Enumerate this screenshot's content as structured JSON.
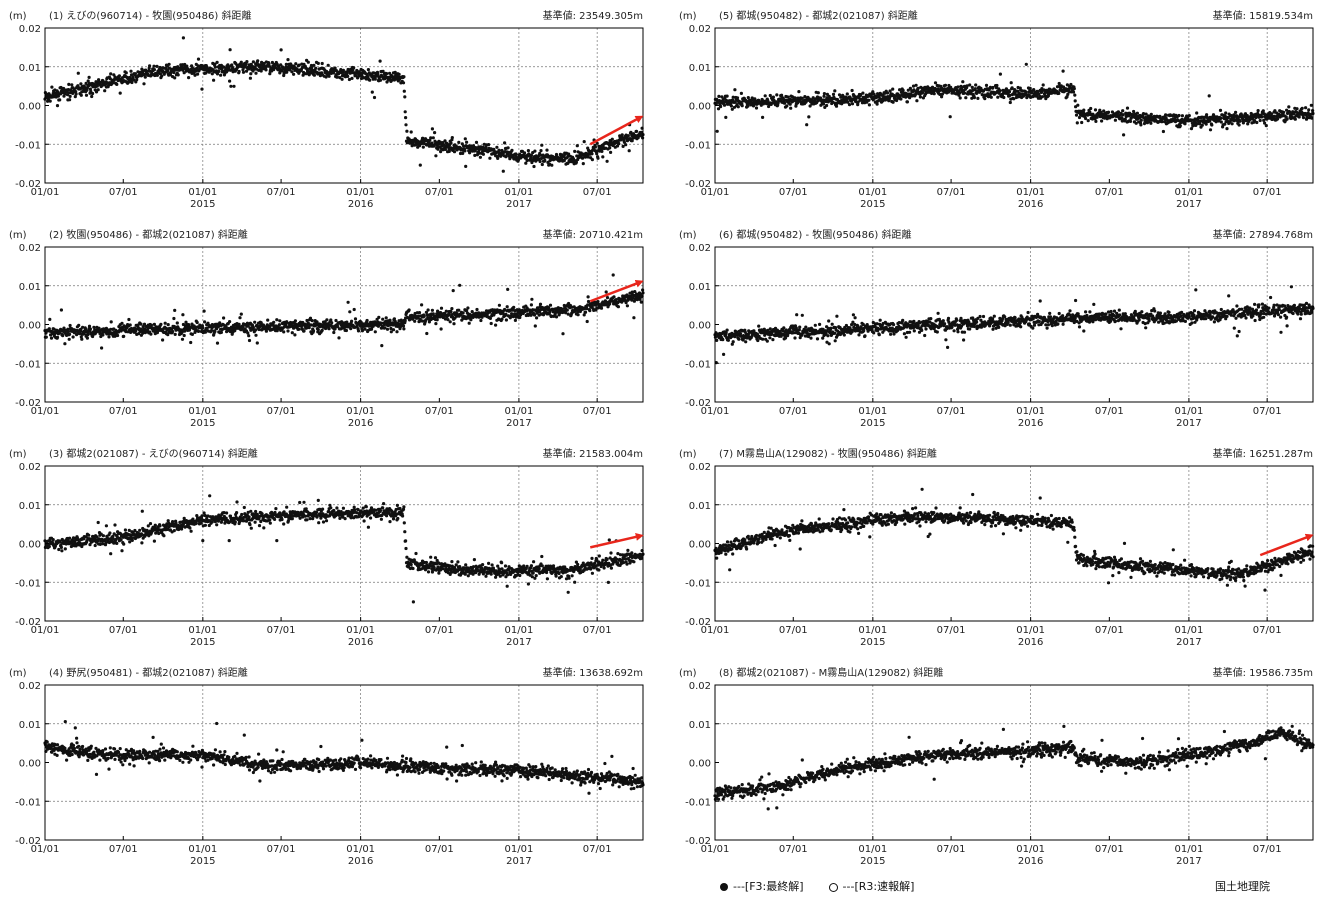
{
  "colors": {
    "points": "#111111",
    "arrow": "#e8261c",
    "grid": "#777777",
    "frame": "#000000"
  },
  "unit_label": "(m)",
  "y_tick_labels": [
    "0.02",
    "0.01",
    "0.00",
    "-0.01",
    "-0.02"
  ],
  "x_tick_labels": [
    "01/01",
    "07/01",
    "01/01",
    "07/01",
    "01/01",
    "07/01",
    "01/01",
    "07/01"
  ],
  "year_labels": [
    "2015",
    "2016",
    "2017"
  ],
  "legend": {
    "final": "---[F3:最終解]",
    "rapid": "---[R3:速報解]"
  },
  "org": "国土地理院",
  "chart_data": [
    {
      "type": "scatter",
      "id": "1",
      "title": "(1) えびの(960714) - 牧園(950486) 斜距離",
      "reference": "基準値: 23549.305m",
      "xlabel": "",
      "ylabel": "(m)",
      "xlim": [
        "2014-01-01",
        "2017-10-15"
      ],
      "ylim": [
        -0.02,
        0.02
      ],
      "grid": true,
      "trend": [
        [
          "2014-01-01",
          0.002
        ],
        [
          "2014-06-01",
          0.006
        ],
        [
          "2014-10-01",
          0.009
        ],
        [
          "2015-06-01",
          0.01
        ],
        [
          "2016-01-01",
          0.008
        ],
        [
          "2016-04-10",
          0.007
        ],
        [
          "2016-04-16",
          -0.009
        ],
        [
          "2016-09-01",
          -0.011
        ],
        [
          "2017-01-01",
          -0.013
        ],
        [
          "2017-05-01",
          -0.014
        ],
        [
          "2017-10-15",
          -0.007
        ]
      ],
      "arrow": [
        [
          "2017-06-15",
          -0.01
        ],
        [
          "2017-10-10",
          -0.003
        ]
      ]
    },
    {
      "type": "scatter",
      "id": "2",
      "title": "(2) 牧園(950486) - 都城2(021087) 斜距離",
      "reference": "基準値: 20710.421m",
      "xlabel": "",
      "ylabel": "(m)",
      "xlim": [
        "2014-01-01",
        "2017-10-15"
      ],
      "ylim": [
        -0.02,
        0.02
      ],
      "grid": true,
      "trend": [
        [
          "2014-01-01",
          -0.002
        ],
        [
          "2015-01-01",
          -0.001
        ],
        [
          "2016-04-10",
          0.0
        ],
        [
          "2016-04-16",
          0.002
        ],
        [
          "2017-01-01",
          0.003
        ],
        [
          "2017-06-01",
          0.004
        ],
        [
          "2017-10-15",
          0.008
        ]
      ],
      "arrow": [
        [
          "2017-06-15",
          0.006
        ],
        [
          "2017-10-10",
          0.011
        ]
      ]
    },
    {
      "type": "scatter",
      "id": "3",
      "title": "(3) 都城2(021087) - えびの(960714) 斜距離",
      "reference": "基準値: 21583.004m",
      "xlabel": "",
      "ylabel": "(m)",
      "xlim": [
        "2014-01-01",
        "2017-10-15"
      ],
      "ylim": [
        -0.02,
        0.02
      ],
      "grid": true,
      "trend": [
        [
          "2014-01-01",
          0.0
        ],
        [
          "2014-06-01",
          0.001
        ],
        [
          "2015-01-01",
          0.006
        ],
        [
          "2015-06-01",
          0.007
        ],
        [
          "2016-01-01",
          0.008
        ],
        [
          "2016-04-10",
          0.008
        ],
        [
          "2016-04-16",
          -0.005
        ],
        [
          "2016-09-01",
          -0.007
        ],
        [
          "2017-05-01",
          -0.007
        ],
        [
          "2017-10-15",
          -0.003
        ]
      ],
      "arrow": [
        [
          "2017-06-15",
          -0.001
        ],
        [
          "2017-10-10",
          0.002
        ]
      ]
    },
    {
      "type": "scatter",
      "id": "4",
      "title": "(4) 野尻(950481) - 都城2(021087) 斜距離",
      "reference": "基準値: 13638.692m",
      "xlabel": "",
      "ylabel": "(m)",
      "xlim": [
        "2014-01-01",
        "2017-10-15"
      ],
      "ylim": [
        -0.02,
        0.02
      ],
      "grid": true,
      "trend": [
        [
          "2014-01-01",
          0.004
        ],
        [
          "2014-06-01",
          0.002
        ],
        [
          "2015-01-01",
          0.002
        ],
        [
          "2015-06-01",
          -0.001
        ],
        [
          "2016-01-01",
          0.0
        ],
        [
          "2016-09-01",
          -0.002
        ],
        [
          "2017-01-01",
          -0.002
        ],
        [
          "2017-10-15",
          -0.005
        ]
      ],
      "arrow": null
    },
    {
      "type": "scatter",
      "id": "5",
      "title": "(5) 都城(950482) - 都城2(021087) 斜距離",
      "reference": "基準値: 15819.534m",
      "xlabel": "",
      "ylabel": "(m)",
      "xlim": [
        "2014-01-01",
        "2017-10-15"
      ],
      "ylim": [
        -0.02,
        0.02
      ],
      "grid": true,
      "trend": [
        [
          "2014-01-01",
          0.001
        ],
        [
          "2014-06-01",
          0.001
        ],
        [
          "2015-01-01",
          0.002
        ],
        [
          "2015-06-01",
          0.004
        ],
        [
          "2016-01-01",
          0.003
        ],
        [
          "2016-04-10",
          0.004
        ],
        [
          "2016-04-16",
          -0.002
        ],
        [
          "2017-01-01",
          -0.004
        ],
        [
          "2017-06-01",
          -0.003
        ],
        [
          "2017-10-15",
          -0.002
        ]
      ],
      "arrow": null
    },
    {
      "type": "scatter",
      "id": "6",
      "title": "(6) 都城(950482) - 牧園(950486) 斜距離",
      "reference": "基準値: 27894.768m",
      "xlabel": "",
      "ylabel": "(m)",
      "xlim": [
        "2014-01-01",
        "2017-10-15"
      ],
      "ylim": [
        -0.02,
        0.02
      ],
      "grid": true,
      "trend": [
        [
          "2014-01-01",
          -0.003
        ],
        [
          "2015-01-01",
          -0.001
        ],
        [
          "2016-01-01",
          0.001
        ],
        [
          "2016-06-01",
          0.002
        ],
        [
          "2017-01-01",
          0.002
        ],
        [
          "2017-10-15",
          0.004
        ]
      ],
      "arrow": null
    },
    {
      "type": "scatter",
      "id": "7",
      "title": "(7) M霧島山A(129082) - 牧園(950486) 斜距離",
      "reference": "基準値: 16251.287m",
      "xlabel": "",
      "ylabel": "(m)",
      "xlim": [
        "2014-01-01",
        "2017-10-15"
      ],
      "ylim": [
        -0.02,
        0.02
      ],
      "grid": true,
      "trend": [
        [
          "2014-01-01",
          -0.002
        ],
        [
          "2014-06-01",
          0.003
        ],
        [
          "2015-01-01",
          0.006
        ],
        [
          "2015-06-01",
          0.007
        ],
        [
          "2016-01-01",
          0.006
        ],
        [
          "2016-04-10",
          0.005
        ],
        [
          "2016-04-16",
          -0.004
        ],
        [
          "2016-09-01",
          -0.006
        ],
        [
          "2017-01-01",
          -0.007
        ],
        [
          "2017-05-01",
          -0.008
        ],
        [
          "2017-10-15",
          -0.002
        ]
      ],
      "arrow": [
        [
          "2017-06-15",
          -0.003
        ],
        [
          "2017-10-10",
          0.002
        ]
      ]
    },
    {
      "type": "scatter",
      "id": "8",
      "title": "(8) 都城2(021087) - M霧島山A(129082) 斜距離",
      "reference": "基準値: 19586.735m",
      "xlabel": "",
      "ylabel": "(m)",
      "xlim": [
        "2014-01-01",
        "2017-10-15"
      ],
      "ylim": [
        -0.02,
        0.02
      ],
      "grid": true,
      "trend": [
        [
          "2014-01-01",
          -0.008
        ],
        [
          "2014-06-01",
          -0.006
        ],
        [
          "2014-10-01",
          -0.002
        ],
        [
          "2015-06-01",
          0.002
        ],
        [
          "2016-01-01",
          0.003
        ],
        [
          "2016-04-10",
          0.004
        ],
        [
          "2016-04-16",
          0.001
        ],
        [
          "2016-09-01",
          0.0
        ],
        [
          "2017-01-01",
          0.002
        ],
        [
          "2017-06-01",
          0.005
        ],
        [
          "2017-08-01",
          0.008
        ],
        [
          "2017-10-15",
          0.004
        ]
      ],
      "arrow": null
    }
  ]
}
